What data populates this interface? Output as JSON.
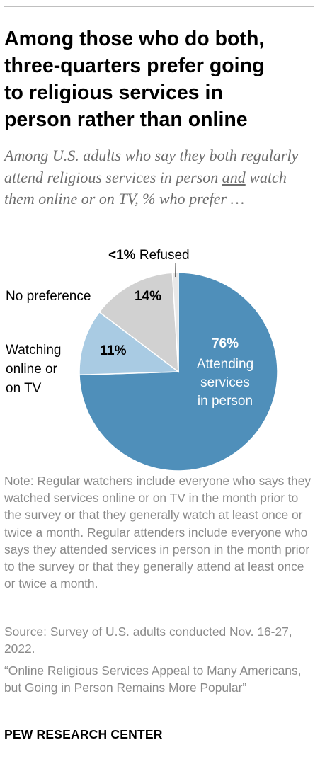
{
  "title": "Among those who do both,\nthree-quarters prefer going\nto religious services in\nperson rather than online",
  "subtitle": {
    "before": "Among U.S. adults who say they both regularly attend religious services in person ",
    "underlined": "and",
    "after": " watch them online or on TV, % who prefer …"
  },
  "chart_data": {
    "type": "pie",
    "title": "Among those who do both, three-quarters prefer going to religious services in person rather than online",
    "slices": [
      {
        "label": "Attending services in person",
        "label_lines": [
          "Attending",
          "services",
          "in person"
        ],
        "value": 76,
        "value_text": "76%",
        "color": "#4f8fba"
      },
      {
        "label": "Watching online or on TV",
        "label_lines": [
          "Watching",
          "online or",
          "on TV"
        ],
        "value": 11,
        "value_text": "11%",
        "color": "#a9cbe3"
      },
      {
        "label": "No preference",
        "label_lines": [
          "No preference"
        ],
        "value": 14,
        "value_text": "14%",
        "color": "#d1d1d1"
      },
      {
        "label": "Refused",
        "label_lines": [
          "Refused"
        ],
        "value": 1,
        "value_text": "<1%",
        "color": "#e8e8e8"
      }
    ]
  },
  "note": "Note: Regular watchers include everyone who says they watched services online or on TV in the month prior to the survey or that they generally watch at least once or twice a month. Regular attenders include everyone who says they attended services in person in the month prior to the survey or that they generally attend at least once or twice a month.",
  "source": "Source: Survey of U.S. adults conducted Nov. 16-27, 2022.",
  "report": "“Online Religious Services Appeal to Many Americans, but Going in Person Remains More Popular”",
  "brand": "PEW RESEARCH CENTER"
}
